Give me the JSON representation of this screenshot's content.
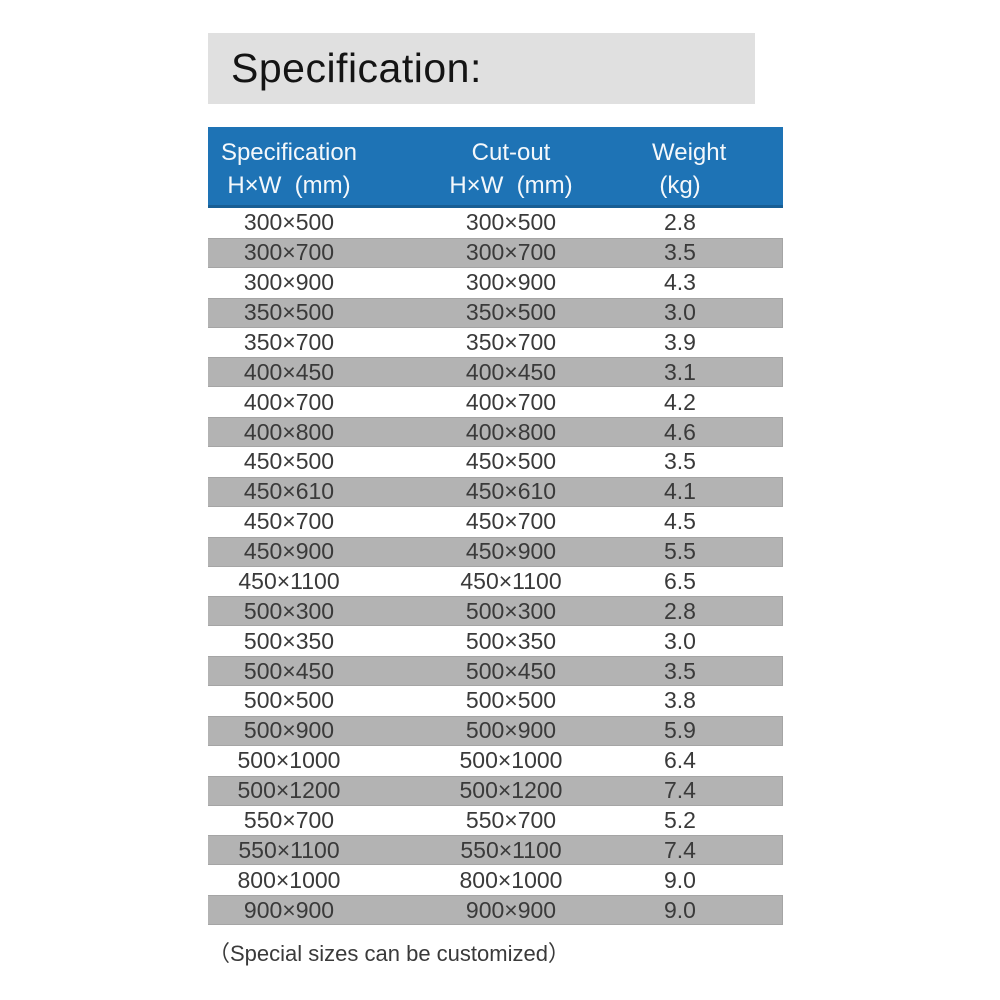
{
  "colors": {
    "header_blue": "#1E73B5",
    "row_gray": "#B3B3B3",
    "title_bg": "#E0E0E0",
    "text_dark": "#3A3A3A"
  },
  "page": {
    "title": "Specification:",
    "footnote": "（Special sizes can be customized）"
  },
  "table": {
    "columns": [
      {
        "line1": "Specification",
        "line2": "H×W  (mm)"
      },
      {
        "line1": "Cut-out",
        "line2": "H×W  (mm)"
      },
      {
        "line1": "Weight",
        "line2": "(kg)"
      }
    ],
    "rows": [
      {
        "spec": "300×500",
        "cutout": "300×500",
        "weight": "2.8"
      },
      {
        "spec": "300×700",
        "cutout": "300×700",
        "weight": "3.5"
      },
      {
        "spec": "300×900",
        "cutout": "300×900",
        "weight": "4.3"
      },
      {
        "spec": "350×500",
        "cutout": "350×500",
        "weight": "3.0"
      },
      {
        "spec": "350×700",
        "cutout": "350×700",
        "weight": "3.9"
      },
      {
        "spec": "400×450",
        "cutout": "400×450",
        "weight": "3.1"
      },
      {
        "spec": "400×700",
        "cutout": "400×700",
        "weight": "4.2"
      },
      {
        "spec": "400×800",
        "cutout": "400×800",
        "weight": "4.6"
      },
      {
        "spec": "450×500",
        "cutout": "450×500",
        "weight": "3.5"
      },
      {
        "spec": "450×610",
        "cutout": "450×610",
        "weight": "4.1"
      },
      {
        "spec": "450×700",
        "cutout": "450×700",
        "weight": "4.5"
      },
      {
        "spec": "450×900",
        "cutout": "450×900",
        "weight": "5.5"
      },
      {
        "spec": "450×1100",
        "cutout": "450×1100",
        "weight": "6.5"
      },
      {
        "spec": "500×300",
        "cutout": "500×300",
        "weight": "2.8"
      },
      {
        "spec": "500×350",
        "cutout": "500×350",
        "weight": "3.0"
      },
      {
        "spec": "500×450",
        "cutout": "500×450",
        "weight": "3.5"
      },
      {
        "spec": "500×500",
        "cutout": "500×500",
        "weight": "3.8"
      },
      {
        "spec": "500×900",
        "cutout": "500×900",
        "weight": "5.9"
      },
      {
        "spec": "500×1000",
        "cutout": "500×1000",
        "weight": "6.4"
      },
      {
        "spec": "500×1200",
        "cutout": "500×1200",
        "weight": "7.4"
      },
      {
        "spec": "550×700",
        "cutout": "550×700",
        "weight": "5.2"
      },
      {
        "spec": "550×1100",
        "cutout": "550×1100",
        "weight": "7.4"
      },
      {
        "spec": "800×1000",
        "cutout": "800×1000",
        "weight": "9.0"
      },
      {
        "spec": "900×900",
        "cutout": "900×900",
        "weight": "9.0"
      }
    ]
  }
}
